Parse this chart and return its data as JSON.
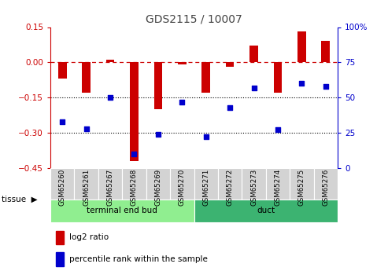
{
  "title": "GDS2115 / 10007",
  "samples": [
    "GSM65260",
    "GSM65261",
    "GSM65267",
    "GSM65268",
    "GSM65269",
    "GSM65270",
    "GSM65271",
    "GSM65272",
    "GSM65273",
    "GSM65274",
    "GSM65275",
    "GSM65276"
  ],
  "log2_ratio": [
    -0.07,
    -0.13,
    0.01,
    -0.42,
    -0.2,
    -0.01,
    -0.13,
    -0.02,
    0.07,
    -0.13,
    0.13,
    0.09
  ],
  "percentile_rank": [
    33,
    28,
    50,
    10,
    24,
    47,
    22,
    43,
    57,
    27,
    60,
    58
  ],
  "tissue_groups": [
    {
      "label": "terminal end bud",
      "start": 0,
      "end": 6,
      "color": "#90EE90"
    },
    {
      "label": "duct",
      "start": 6,
      "end": 12,
      "color": "#3CB371"
    }
  ],
  "bar_color": "#CC0000",
  "dot_color": "#0000CC",
  "ylim_left": [
    -0.45,
    0.15
  ],
  "ylim_right": [
    0,
    100
  ],
  "yticks_left": [
    -0.45,
    -0.3,
    -0.15,
    0.0,
    0.15
  ],
  "yticks_right": [
    0,
    25,
    50,
    75,
    100
  ],
  "hline_y": 0.0,
  "dotted_lines": [
    -0.15,
    -0.3
  ],
  "background_color": "#ffffff",
  "plot_bg_color": "#ffffff",
  "title_color": "#444444",
  "left_axis_color": "#CC0000",
  "right_axis_color": "#0000CC",
  "sample_bg_color": "#D3D3D3",
  "tissue_label": "tissue",
  "legend_log2": "log2 ratio",
  "legend_pct": "percentile rank within the sample",
  "bar_width": 0.35
}
